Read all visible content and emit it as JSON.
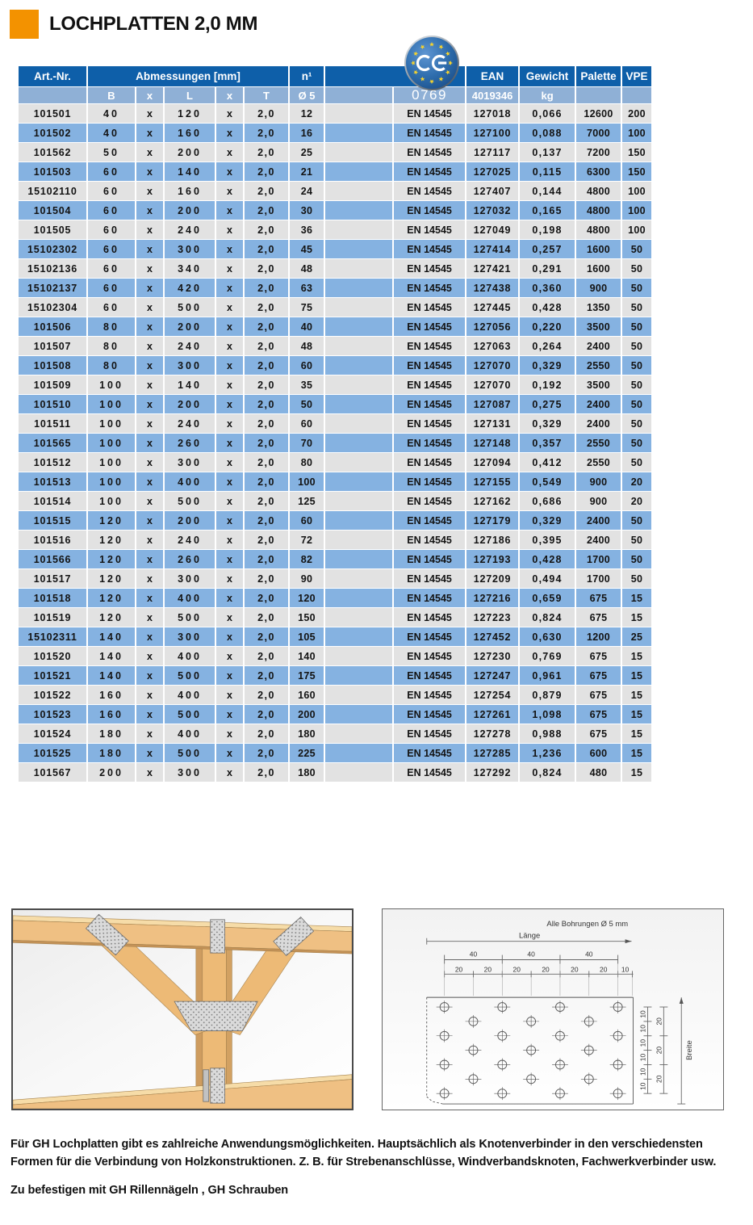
{
  "page": {
    "title": "LOCHPLATTEN 2,0 MM"
  },
  "theme": {
    "accent-orange": "#F39200",
    "header-blue": "#0E5FA9",
    "subheader-blue": "#8FB0D6",
    "row-blue": "#85B2E1",
    "row-gray": "#E2E2E2",
    "badge-blue": "#2E6DAD",
    "star-yellow": "#F6D32D",
    "text-dark": "#131313"
  },
  "ce_badge": {
    "number": "0769"
  },
  "table": {
    "header": {
      "art_nr": "Art.-Nr.",
      "abmessungen": "Abmessungen [mm]",
      "n": "n¹",
      "ean": "EAN",
      "gewicht": "Gewicht",
      "palette": "Palette",
      "vpe": "VPE"
    },
    "subheader": {
      "b": "B",
      "x1": "x",
      "l": "L",
      "x2": "x",
      "t": "T",
      "d5": "Ø 5",
      "ce_number": "0769",
      "ean_prefix": "4019346",
      "kg": "kg"
    },
    "rows": [
      [
        "101501",
        "40",
        "x",
        "120",
        "x",
        "2,0",
        "12",
        "EN 14545",
        "127018",
        "0,066",
        "12600",
        "200"
      ],
      [
        "101502",
        "40",
        "x",
        "160",
        "x",
        "2,0",
        "16",
        "EN 14545",
        "127100",
        "0,088",
        "7000",
        "100"
      ],
      [
        "101562",
        "50",
        "x",
        "200",
        "x",
        "2,0",
        "25",
        "EN 14545",
        "127117",
        "0,137",
        "7200",
        "150"
      ],
      [
        "101503",
        "60",
        "x",
        "140",
        "x",
        "2,0",
        "21",
        "EN 14545",
        "127025",
        "0,115",
        "6300",
        "150"
      ],
      [
        "15102110",
        "60",
        "x",
        "160",
        "x",
        "2,0",
        "24",
        "EN 14545",
        "127407",
        "0,144",
        "4800",
        "100"
      ],
      [
        "101504",
        "60",
        "x",
        "200",
        "x",
        "2,0",
        "30",
        "EN 14545",
        "127032",
        "0,165",
        "4800",
        "100"
      ],
      [
        "101505",
        "60",
        "x",
        "240",
        "x",
        "2,0",
        "36",
        "EN 14545",
        "127049",
        "0,198",
        "4800",
        "100"
      ],
      [
        "15102302",
        "60",
        "x",
        "300",
        "x",
        "2,0",
        "45",
        "EN 14545",
        "127414",
        "0,257",
        "1600",
        "50"
      ],
      [
        "15102136",
        "60",
        "x",
        "340",
        "x",
        "2,0",
        "48",
        "EN 14545",
        "127421",
        "0,291",
        "1600",
        "50"
      ],
      [
        "15102137",
        "60",
        "x",
        "420",
        "x",
        "2,0",
        "63",
        "EN 14545",
        "127438",
        "0,360",
        "900",
        "50"
      ],
      [
        "15102304",
        "60",
        "x",
        "500",
        "x",
        "2,0",
        "75",
        "EN 14545",
        "127445",
        "0,428",
        "1350",
        "50"
      ],
      [
        "101506",
        "80",
        "x",
        "200",
        "x",
        "2,0",
        "40",
        "EN 14545",
        "127056",
        "0,220",
        "3500",
        "50"
      ],
      [
        "101507",
        "80",
        "x",
        "240",
        "x",
        "2,0",
        "48",
        "EN 14545",
        "127063",
        "0,264",
        "2400",
        "50"
      ],
      [
        "101508",
        "80",
        "x",
        "300",
        "x",
        "2,0",
        "60",
        "EN 14545",
        "127070",
        "0,329",
        "2550",
        "50"
      ],
      [
        "101509",
        "100",
        "x",
        "140",
        "x",
        "2,0",
        "35",
        "EN 14545",
        "127070",
        "0,192",
        "3500",
        "50"
      ],
      [
        "101510",
        "100",
        "x",
        "200",
        "x",
        "2,0",
        "50",
        "EN 14545",
        "127087",
        "0,275",
        "2400",
        "50"
      ],
      [
        "101511",
        "100",
        "x",
        "240",
        "x",
        "2,0",
        "60",
        "EN 14545",
        "127131",
        "0,329",
        "2400",
        "50"
      ],
      [
        "101565",
        "100",
        "x",
        "260",
        "x",
        "2,0",
        "70",
        "EN 14545",
        "127148",
        "0,357",
        "2550",
        "50"
      ],
      [
        "101512",
        "100",
        "x",
        "300",
        "x",
        "2,0",
        "80",
        "EN 14545",
        "127094",
        "0,412",
        "2550",
        "50"
      ],
      [
        "101513",
        "100",
        "x",
        "400",
        "x",
        "2,0",
        "100",
        "EN 14545",
        "127155",
        "0,549",
        "900",
        "20"
      ],
      [
        "101514",
        "100",
        "x",
        "500",
        "x",
        "2,0",
        "125",
        "EN 14545",
        "127162",
        "0,686",
        "900",
        "20"
      ],
      [
        "101515",
        "120",
        "x",
        "200",
        "x",
        "2,0",
        "60",
        "EN 14545",
        "127179",
        "0,329",
        "2400",
        "50"
      ],
      [
        "101516",
        "120",
        "x",
        "240",
        "x",
        "2,0",
        "72",
        "EN 14545",
        "127186",
        "0,395",
        "2400",
        "50"
      ],
      [
        "101566",
        "120",
        "x",
        "260",
        "x",
        "2,0",
        "82",
        "EN 14545",
        "127193",
        "0,428",
        "1700",
        "50"
      ],
      [
        "101517",
        "120",
        "x",
        "300",
        "x",
        "2,0",
        "90",
        "EN 14545",
        "127209",
        "0,494",
        "1700",
        "50"
      ],
      [
        "101518",
        "120",
        "x",
        "400",
        "x",
        "2,0",
        "120",
        "EN 14545",
        "127216",
        "0,659",
        "675",
        "15"
      ],
      [
        "101519",
        "120",
        "x",
        "500",
        "x",
        "2,0",
        "150",
        "EN 14545",
        "127223",
        "0,824",
        "675",
        "15"
      ],
      [
        "15102311",
        "140",
        "x",
        "300",
        "x",
        "2,0",
        "105",
        "EN 14545",
        "127452",
        "0,630",
        "1200",
        "25"
      ],
      [
        "101520",
        "140",
        "x",
        "400",
        "x",
        "2,0",
        "140",
        "EN 14545",
        "127230",
        "0,769",
        "675",
        "15"
      ],
      [
        "101521",
        "140",
        "x",
        "500",
        "x",
        "2,0",
        "175",
        "EN 14545",
        "127247",
        "0,961",
        "675",
        "15"
      ],
      [
        "101522",
        "160",
        "x",
        "400",
        "x",
        "2,0",
        "160",
        "EN 14545",
        "127254",
        "0,879",
        "675",
        "15"
      ],
      [
        "101523",
        "160",
        "x",
        "500",
        "x",
        "2,0",
        "200",
        "EN 14545",
        "127261",
        "1,098",
        "675",
        "15"
      ],
      [
        "101524",
        "180",
        "x",
        "400",
        "x",
        "2,0",
        "180",
        "EN 14545",
        "127278",
        "0,988",
        "675",
        "15"
      ],
      [
        "101525",
        "180",
        "x",
        "500",
        "x",
        "2,0",
        "225",
        "EN 14545",
        "127285",
        "1,236",
        "600",
        "15"
      ],
      [
        "101567",
        "200",
        "x",
        "300",
        "x",
        "2,0",
        "180",
        "EN 14545",
        "127292",
        "0,824",
        "480",
        "15"
      ]
    ]
  },
  "drawing": {
    "note": "Alle Bohrungen Ø 5 mm",
    "length_label": "Länge",
    "width_label": "Breite",
    "dims_40": [
      "40",
      "40",
      "40"
    ],
    "dims_20": [
      "20",
      "20",
      "20",
      "20",
      "20",
      "20"
    ],
    "dim_10_end": "10",
    "dims_10_right": [
      "10",
      "10",
      "10",
      "10",
      "10",
      "10"
    ],
    "dims_20_right": [
      "20",
      "20",
      "20"
    ]
  },
  "footer": {
    "description": "Für GH Lochplatten gibt es zahlreiche Anwendungsmöglichkeiten. Hauptsächlich als Knotenverbinder in den verschiedensten Formen für die Verbindung von Holzkonstruktionen. Z. B. für Strebenanschlüsse, Windverbandsknoten, Fachwerkverbinder usw.",
    "fastening_note": "Zu befestigen mit GH Rillennägeln , GH Schrauben"
  }
}
